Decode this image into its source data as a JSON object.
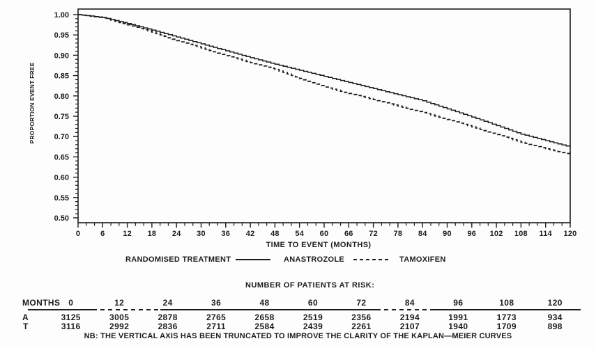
{
  "page": {
    "background": "#fdfdfd",
    "ink": "#1c1c1c"
  },
  "chart_data": {
    "type": "line",
    "subtype": "kaplan-meier-step",
    "title": "",
    "xlabel": "TIME TO EVENT (MONTHS)",
    "ylabel": "PROPORTION EVENT FREE",
    "xlim": [
      0,
      120
    ],
    "ylim": [
      0.5,
      1.0
    ],
    "grid": "off",
    "x_major_ticks": [
      0,
      6,
      12,
      18,
      24,
      30,
      36,
      42,
      48,
      54,
      60,
      66,
      72,
      78,
      84,
      90,
      96,
      102,
      108,
      114,
      120
    ],
    "x_minor_step": 2,
    "y_tick_labels": [
      "1.00",
      "0.95",
      "0.90",
      "0.85",
      "0.80",
      "0.75",
      "0.70",
      "0.65",
      "0.60",
      "0.55",
      "0.50"
    ],
    "y_minor_step": 0.01,
    "x": [
      0,
      6,
      12,
      18,
      24,
      30,
      36,
      42,
      48,
      54,
      60,
      66,
      72,
      78,
      84,
      90,
      96,
      102,
      108,
      114,
      120
    ],
    "series": [
      {
        "name": "ANASTROZOLE",
        "style": "solid",
        "values": [
          1.0,
          0.993,
          0.978,
          0.962,
          0.945,
          0.928,
          0.911,
          0.894,
          0.878,
          0.863,
          0.848,
          0.833,
          0.818,
          0.803,
          0.788,
          0.768,
          0.748,
          0.727,
          0.706,
          0.69,
          0.674
        ]
      },
      {
        "name": "TAMOXIFEN",
        "style": "dashed",
        "values": [
          1.0,
          0.992,
          0.975,
          0.957,
          0.936,
          0.918,
          0.899,
          0.882,
          0.865,
          0.843,
          0.822,
          0.806,
          0.791,
          0.775,
          0.759,
          0.742,
          0.724,
          0.705,
          0.686,
          0.67,
          0.656
        ]
      }
    ],
    "legend_title": "RANDOMISED TREATMENT",
    "legend_position": "bottom"
  },
  "risk_table": {
    "title": "NUMBER OF PATIENTS AT RISK:",
    "months_label": "MONTHS",
    "columns": [
      "0",
      "12",
      "24",
      "36",
      "48",
      "60",
      "72",
      "84",
      "96",
      "108",
      "120"
    ],
    "rows": [
      {
        "label": "A",
        "values": [
          "3125",
          "3005",
          "2878",
          "2765",
          "2658",
          "2519",
          "2356",
          "2194",
          "1991",
          "1773",
          "934"
        ]
      },
      {
        "label": "T",
        "values": [
          "3116",
          "2992",
          "2836",
          "2711",
          "2584",
          "2439",
          "2261",
          "2107",
          "1940",
          "1709",
          "898"
        ]
      }
    ]
  },
  "footnote": "NB: THE VERTICAL AXIS HAS BEEN TRUNCATED TO IMPROVE THE CLARITY OF THE KAPLAN—MEIER CURVES"
}
